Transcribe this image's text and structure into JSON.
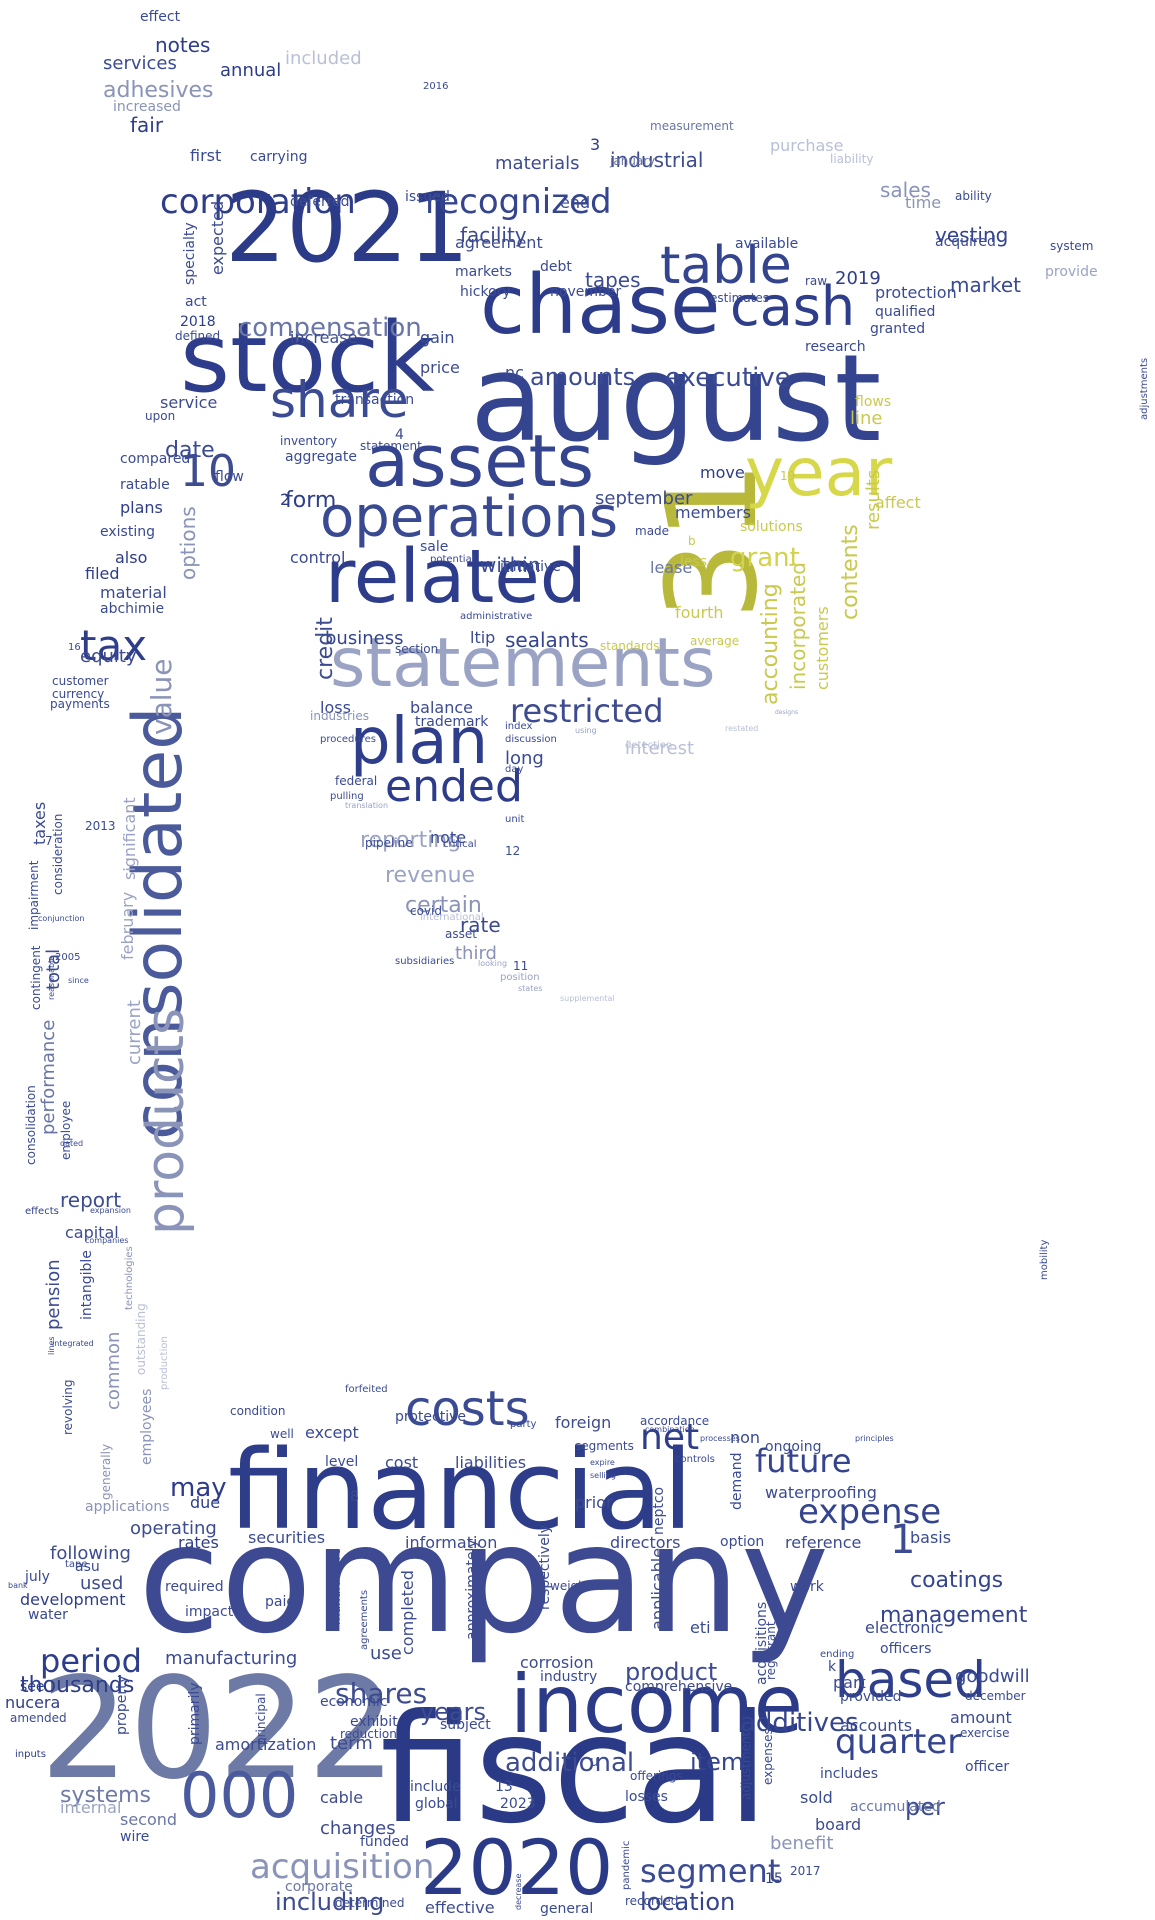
{
  "words": [
    {
      "t": "company",
      "c": "#3d4a92"
    },
    {
      "t": "fiscal",
      "c": "#2a3a86"
    },
    {
      "t": "financial",
      "c": "#2d3d8a"
    },
    {
      "t": "2022",
      "c": "#6e7aa6"
    },
    {
      "t": "august",
      "c": "#34448e"
    },
    {
      "t": "31",
      "c": "#b8b83a"
    },
    {
      "t": "statements",
      "c": "#9aa3c4"
    },
    {
      "t": "2021",
      "c": "#2b3b88"
    },
    {
      "t": "stock",
      "c": "#2e3d8b"
    },
    {
      "t": "chase",
      "c": "#2d3c8a"
    },
    {
      "t": "assets",
      "c": "#34448e"
    },
    {
      "t": "related",
      "c": "#2d3d8b"
    },
    {
      "t": "operations",
      "c": "#3a4a92"
    },
    {
      "t": "plan",
      "c": "#2e3e8b"
    },
    {
      "t": "year",
      "c": "#d7d74a"
    },
    {
      "t": "income",
      "c": "#2c3b88"
    },
    {
      "t": "2020",
      "c": "#2b3a86"
    },
    {
      "t": "000",
      "c": "#4a5a9c"
    },
    {
      "t": "consolidated",
      "c": "#4b5a9a"
    },
    {
      "t": "products",
      "c": "#8a93b8"
    },
    {
      "t": "cash",
      "c": "#2e3e8b"
    },
    {
      "t": "table",
      "c": "#34448e"
    },
    {
      "t": "share",
      "c": "#3a4a93"
    },
    {
      "t": "costs",
      "c": "#3a4a93"
    },
    {
      "t": "based",
      "c": "#2e3e8b"
    },
    {
      "t": "ended",
      "c": "#2d3c8a"
    },
    {
      "t": "tax",
      "c": "#2e3e8b"
    },
    {
      "t": "restricted",
      "c": "#3d4b90"
    },
    {
      "t": "corporation",
      "c": "#2e3d8a"
    },
    {
      "t": "recognized",
      "c": "#34448e"
    },
    {
      "t": "quarter",
      "c": "#34448e"
    },
    {
      "t": "expense",
      "c": "#34448e"
    },
    {
      "t": "net",
      "c": "#2e3d8a"
    },
    {
      "t": "acquisition",
      "c": "#8a93b8"
    },
    {
      "t": "segment",
      "c": "#3a4a93"
    },
    {
      "t": "value",
      "c": "#8a93b8"
    },
    {
      "t": "period",
      "c": "#2e3d8a"
    },
    {
      "t": "future",
      "c": "#34448e"
    },
    {
      "t": "1",
      "c": "#3d4b90"
    },
    {
      "t": "10",
      "c": "#3d4b90"
    },
    {
      "t": "contents",
      "c": "#c9c94e"
    },
    {
      "t": "accounting",
      "c": "#c9c94e"
    },
    {
      "t": "incorporated",
      "c": "#c9c94e"
    },
    {
      "t": "grant",
      "c": "#d2d24c"
    },
    {
      "t": "executive",
      "c": "#3a4a93"
    },
    {
      "t": "amounts",
      "c": "#3a4a93"
    },
    {
      "t": "compensation",
      "c": "#6a76a6"
    },
    {
      "t": "form",
      "c": "#2e3d8a"
    },
    {
      "t": "date",
      "c": "#3a4a93"
    },
    {
      "t": "options",
      "c": "#8a93b8"
    },
    {
      "t": "may",
      "c": "#2e3d8a"
    },
    {
      "t": "shares",
      "c": "#3d4b90"
    },
    {
      "t": "additives",
      "c": "#34448e"
    },
    {
      "t": "additional",
      "c": "#3d4b90"
    },
    {
      "t": "management",
      "c": "#34448e"
    },
    {
      "t": "coatings",
      "c": "#34448e"
    },
    {
      "t": "years",
      "c": "#3d4b90"
    },
    {
      "t": "product",
      "c": "#3d4b90"
    },
    {
      "t": "item",
      "c": "#34448e"
    },
    {
      "t": "per",
      "c": "#3a4a93"
    },
    {
      "t": "location",
      "c": "#34448e"
    },
    {
      "t": "thousands",
      "c": "#2e3d8a"
    },
    {
      "t": "systems",
      "c": "#6e7aa6"
    },
    {
      "t": "including",
      "c": "#3d4b90"
    },
    {
      "t": "revenue",
      "c": "#9aa3c4"
    },
    {
      "t": "certain",
      "c": "#8a93b8"
    },
    {
      "t": "reporting",
      "c": "#9aa3c4"
    },
    {
      "t": "rate",
      "c": "#3a4a93"
    },
    {
      "t": "facility",
      "c": "#3a4a93"
    },
    {
      "t": "tapes",
      "c": "#3d4b90"
    },
    {
      "t": "market",
      "c": "#3a4a93"
    },
    {
      "t": "sales",
      "c": "#8a93b8"
    },
    {
      "t": "vesting",
      "c": "#34448e"
    },
    {
      "t": "industrial",
      "c": "#3d4b90"
    },
    {
      "t": "materials",
      "c": "#3d4b90"
    },
    {
      "t": "2019",
      "c": "#2e3d8a"
    },
    {
      "t": "sealants",
      "c": "#34448e"
    },
    {
      "t": "business",
      "c": "#34448e"
    },
    {
      "t": "within",
      "c": "#3a4a93"
    },
    {
      "t": "september",
      "c": "#3d4b90"
    },
    {
      "t": "members",
      "c": "#3a4a93"
    },
    {
      "t": "move",
      "c": "#2e3d8a"
    },
    {
      "t": "lease",
      "c": "#6a76a6"
    },
    {
      "t": "fourth",
      "c": "#c9c94e"
    },
    {
      "t": "long",
      "c": "#3a4a93"
    },
    {
      "t": "interest",
      "c": "#b9bfd6"
    },
    {
      "t": "price",
      "c": "#3d4b90"
    },
    {
      "t": "nc",
      "c": "#3a4a93"
    },
    {
      "t": "gain",
      "c": "#3a4a93"
    },
    {
      "t": "increase",
      "c": "#3d4b90"
    },
    {
      "t": "deferred",
      "c": "#3d4b90"
    },
    {
      "t": "expected",
      "c": "#3a4a93"
    },
    {
      "t": "specialty",
      "c": "#3a4a93"
    },
    {
      "t": "notes",
      "c": "#2e3d8a"
    },
    {
      "t": "services",
      "c": "#3a4a93"
    },
    {
      "t": "adhesives",
      "c": "#8a93b8"
    },
    {
      "t": "annual",
      "c": "#2e3d8a"
    },
    {
      "t": "included",
      "c": "#b9bfd6"
    },
    {
      "t": "fair",
      "c": "#2e3d8a"
    },
    {
      "t": "increased",
      "c": "#8a93b8"
    },
    {
      "t": "first",
      "c": "#3a4a93"
    },
    {
      "t": "carrying",
      "c": "#3a4a93"
    },
    {
      "t": "effect",
      "c": "#3a4a93"
    },
    {
      "t": "issued",
      "c": "#3a4a93"
    },
    {
      "t": "end",
      "c": "#3a4a93"
    },
    {
      "t": "agreement",
      "c": "#3d4b90"
    },
    {
      "t": "markets",
      "c": "#3a4a93"
    },
    {
      "t": "debt",
      "c": "#3a4a93"
    },
    {
      "t": "hickory",
      "c": "#3a4a93"
    },
    {
      "t": "november",
      "c": "#3a4a93"
    },
    {
      "t": "protection",
      "c": "#3a4a93"
    },
    {
      "t": "qualified",
      "c": "#3a4a93"
    },
    {
      "t": "granted",
      "c": "#3a4a93"
    },
    {
      "t": "research",
      "c": "#3a4a93"
    },
    {
      "t": "acquired",
      "c": "#3a4a93"
    },
    {
      "t": "system",
      "c": "#3a4a93"
    },
    {
      "t": "provide",
      "c": "#9aa3c4"
    },
    {
      "t": "time",
      "c": "#8a93b8"
    },
    {
      "t": "ability",
      "c": "#3a4a93"
    },
    {
      "t": "purchase",
      "c": "#b9bfd6"
    },
    {
      "t": "liability",
      "c": "#b9bfd6"
    },
    {
      "t": "measurement",
      "c": "#6a76a6"
    },
    {
      "t": "january",
      "c": "#6a76a6"
    },
    {
      "t": "available",
      "c": "#3a4a93"
    },
    {
      "t": "estimates",
      "c": "#3a4a93"
    },
    {
      "t": "raw",
      "c": "#3a4a93"
    },
    {
      "t": "act",
      "c": "#3a4a93"
    },
    {
      "t": "2018",
      "c": "#2e3d8a"
    },
    {
      "t": "defined",
      "c": "#3a4a93"
    },
    {
      "t": "service",
      "c": "#3d4b90"
    },
    {
      "t": "compared",
      "c": "#3a4a93"
    },
    {
      "t": "plans",
      "c": "#2e3d8a"
    },
    {
      "t": "existing",
      "c": "#3a4a93"
    },
    {
      "t": "also",
      "c": "#2e3d8a"
    },
    {
      "t": "filed",
      "c": "#2e3d8a"
    },
    {
      "t": "material",
      "c": "#3a4a93"
    },
    {
      "t": "abchimie",
      "c": "#3a4a93"
    },
    {
      "t": "equity",
      "c": "#3d4b90"
    },
    {
      "t": "customer",
      "c": "#3a4a93"
    },
    {
      "t": "currency",
      "c": "#3a4a93"
    },
    {
      "t": "payments",
      "c": "#3a4a93"
    },
    {
      "t": "taxes",
      "c": "#3a4a93"
    },
    {
      "t": "total",
      "c": "#3d4b90"
    },
    {
      "t": "current",
      "c": "#9aa3c4"
    },
    {
      "t": "february",
      "c": "#9aa3c4"
    },
    {
      "t": "significant",
      "c": "#9aa3c4"
    },
    {
      "t": "performance",
      "c": "#6a76a6"
    },
    {
      "t": "impairment",
      "c": "#3a4a93"
    },
    {
      "t": "consideration",
      "c": "#3a4a93"
    },
    {
      "t": "report",
      "c": "#3d4b90"
    },
    {
      "t": "capital",
      "c": "#3d4b90"
    },
    {
      "t": "pension",
      "c": "#3d4b90"
    },
    {
      "t": "intangible",
      "c": "#3a4a93"
    },
    {
      "t": "common",
      "c": "#8a93b8"
    },
    {
      "t": "employees",
      "c": "#8a93b8"
    },
    {
      "t": "outstanding",
      "c": "#b9bfd6"
    },
    {
      "t": "revolving",
      "c": "#3a4a93"
    },
    {
      "t": "operating",
      "c": "#3d4b90"
    },
    {
      "t": "applications",
      "c": "#8a93b8"
    },
    {
      "t": "due",
      "c": "#2e3d8a"
    },
    {
      "t": "rates",
      "c": "#2e3d8a"
    },
    {
      "t": "following",
      "c": "#3d4b90"
    },
    {
      "t": "used",
      "c": "#3d4b90"
    },
    {
      "t": "development",
      "c": "#2e3d8a"
    },
    {
      "t": "water",
      "c": "#3a4a93"
    },
    {
      "t": "see",
      "c": "#2e3d8a"
    },
    {
      "t": "nucera",
      "c": "#2e3d8a"
    },
    {
      "t": "amended",
      "c": "#3a4a93"
    },
    {
      "t": "internal",
      "c": "#9aa3c4"
    },
    {
      "t": "second",
      "c": "#6a76a6"
    },
    {
      "t": "wire",
      "c": "#3a4a93"
    },
    {
      "t": "manufacturing",
      "c": "#3d4b90"
    },
    {
      "t": "required",
      "c": "#3d4b90"
    },
    {
      "t": "impact",
      "c": "#3d4b90"
    },
    {
      "t": "amortization",
      "c": "#3d4b90"
    },
    {
      "t": "securities",
      "c": "#3d4b90"
    },
    {
      "t": "cost",
      "c": "#3a4a93"
    },
    {
      "t": "except",
      "c": "#3a4a93"
    },
    {
      "t": "level",
      "c": "#3a4a93"
    },
    {
      "t": "liabilities",
      "c": "#3d4b90"
    },
    {
      "t": "information",
      "c": "#3d4b90"
    },
    {
      "t": "directors",
      "c": "#3d4b90"
    },
    {
      "t": "foreign",
      "c": "#3d4b90"
    },
    {
      "t": "segments",
      "c": "#3a4a93"
    },
    {
      "t": "prior",
      "c": "#3d4b90"
    },
    {
      "t": "non",
      "c": "#3a4a93"
    },
    {
      "t": "waterproofing",
      "c": "#3a4a93"
    },
    {
      "t": "reference",
      "c": "#3d4b90"
    },
    {
      "t": "basis",
      "c": "#3a4a93"
    },
    {
      "t": "electronic",
      "c": "#3a4a93"
    },
    {
      "t": "goodwill",
      "c": "#3a4a93"
    },
    {
      "t": "amount",
      "c": "#3a4a93"
    },
    {
      "t": "december",
      "c": "#3a4a93"
    },
    {
      "t": "exercise",
      "c": "#3a4a93"
    },
    {
      "t": "officer",
      "c": "#3a4a93"
    },
    {
      "t": "includes",
      "c": "#3a4a93"
    },
    {
      "t": "accumulated",
      "c": "#6a76a6"
    },
    {
      "t": "board",
      "c": "#3d4b90"
    },
    {
      "t": "benefit",
      "c": "#8a93b8"
    },
    {
      "t": "accounts",
      "c": "#3d4b90"
    },
    {
      "t": "provided",
      "c": "#3a4a93"
    },
    {
      "t": "sold",
      "c": "#3a4a93"
    },
    {
      "t": "part",
      "c": "#3a4a93"
    },
    {
      "t": "officers",
      "c": "#3a4a93"
    },
    {
      "t": "eti",
      "c": "#3a4a93"
    },
    {
      "t": "corrosion",
      "c": "#3d4b90"
    },
    {
      "t": "industry",
      "c": "#3a4a93"
    },
    {
      "t": "comprehensive",
      "c": "#3d4b90"
    },
    {
      "t": "term",
      "c": "#3d4b90"
    },
    {
      "t": "economic",
      "c": "#3a4a93"
    },
    {
      "t": "exhibit",
      "c": "#3a4a93"
    },
    {
      "t": "reduction",
      "c": "#3a4a93"
    },
    {
      "t": "subject",
      "c": "#3a4a93"
    },
    {
      "t": "changes",
      "c": "#3d4b90"
    },
    {
      "t": "cable",
      "c": "#3d4b90"
    },
    {
      "t": "funded",
      "c": "#3a4a93"
    },
    {
      "t": "include",
      "c": "#3a4a93"
    },
    {
      "t": "global",
      "c": "#3a4a93"
    },
    {
      "t": "2023",
      "c": "#3a4a93"
    },
    {
      "t": "13",
      "c": "#3a4a93"
    },
    {
      "t": "losses",
      "c": "#3a4a93"
    },
    {
      "t": "offerings",
      "c": "#3a4a93"
    },
    {
      "t": "corporate",
      "c": "#6a76a6"
    },
    {
      "t": "determined",
      "c": "#3a4a93"
    },
    {
      "t": "effective",
      "c": "#3d4b90"
    },
    {
      "t": "general",
      "c": "#3a4a93"
    },
    {
      "t": "recorded",
      "c": "#3a4a93"
    },
    {
      "t": "15",
      "c": "#2e3d8a"
    },
    {
      "t": "2017",
      "c": "#3a4a93"
    },
    {
      "t": "use",
      "c": "#3d4b90"
    },
    {
      "t": "paid",
      "c": "#3a4a93"
    },
    {
      "t": "protective",
      "c": "#3a4a93"
    },
    {
      "t": "well",
      "c": "#3a4a93"
    },
    {
      "t": "weighted",
      "c": "#3a4a93"
    },
    {
      "t": "credit",
      "c": "#3d4b90"
    },
    {
      "t": "control",
      "c": "#3a4a93"
    },
    {
      "t": "loss",
      "c": "#3a4a93"
    },
    {
      "t": "balance",
      "c": "#3a4a93"
    },
    {
      "t": "trademark",
      "c": "#3a4a93"
    },
    {
      "t": "ltip",
      "c": "#3a4a93"
    },
    {
      "t": "section",
      "c": "#3a4a93"
    },
    {
      "t": "sale",
      "c": "#3a4a93"
    },
    {
      "t": "note",
      "c": "#3a4a93"
    },
    {
      "t": "third",
      "c": "#8a93b8"
    },
    {
      "t": "asset",
      "c": "#3a4a93"
    },
    {
      "t": "covid",
      "c": "#3a4a93"
    },
    {
      "t": "aggregate",
      "c": "#3a4a93"
    },
    {
      "t": "transaction",
      "c": "#3a4a93"
    },
    {
      "t": "statement",
      "c": "#3a4a93"
    },
    {
      "t": "line",
      "c": "#c9c94e"
    },
    {
      "t": "flows",
      "c": "#c9c94e"
    },
    {
      "t": "results",
      "c": "#c9c94e"
    },
    {
      "t": "customers",
      "c": "#c9c94e"
    },
    {
      "t": "solutions",
      "c": "#c9c94e"
    },
    {
      "t": "affect",
      "c": "#c9c94e"
    },
    {
      "t": "less",
      "c": "#c9c94e"
    },
    {
      "t": "average",
      "c": "#c9c94e"
    },
    {
      "t": "standards",
      "c": "#c9c94e"
    },
    {
      "t": "made",
      "c": "#3a4a93"
    },
    {
      "t": "initiative",
      "c": "#3a4a93"
    },
    {
      "t": "pipeline",
      "c": "#3a4a93"
    },
    {
      "t": "flow",
      "c": "#3a4a93"
    },
    {
      "t": "inventory",
      "c": "#3a4a93"
    },
    {
      "t": "upon",
      "c": "#3a4a93"
    },
    {
      "t": "ratable",
      "c": "#3a4a93"
    },
    {
      "t": "2",
      "c": "#2e3d8a"
    },
    {
      "t": "3",
      "c": "#2e3d8a"
    },
    {
      "t": "4",
      "c": "#3a4a93"
    },
    {
      "t": "8",
      "c": "#3a4a93"
    },
    {
      "t": "11",
      "c": "#3a4a93"
    },
    {
      "t": "12",
      "c": "#3a4a93"
    },
    {
      "t": "16",
      "c": "#3a4a93"
    },
    {
      "t": "19",
      "c": "#c9c94e"
    },
    {
      "t": "2013",
      "c": "#3a4a93"
    },
    {
      "t": "2016",
      "c": "#3a4a93"
    },
    {
      "t": "2005",
      "c": "#3a4a93"
    },
    {
      "t": "7",
      "c": "#3a4a93"
    },
    {
      "t": "k",
      "c": "#3a4a93"
    },
    {
      "t": "u",
      "c": "#3a4a93"
    },
    {
      "t": "b",
      "c": "#c9c94e"
    },
    {
      "t": "mobility",
      "c": "#3a4a93"
    },
    {
      "t": "adjustments",
      "c": "#3a4a93"
    },
    {
      "t": "federal",
      "c": "#3a4a93"
    },
    {
      "t": "pulling",
      "c": "#3a4a93"
    },
    {
      "t": "subsidiaries",
      "c": "#3a4a93"
    },
    {
      "t": "potential",
      "c": "#3a4a93"
    },
    {
      "t": "administrative",
      "c": "#3a4a93"
    },
    {
      "t": "industries",
      "c": "#8a93b8"
    },
    {
      "t": "procedures",
      "c": "#3a4a93"
    },
    {
      "t": "index",
      "c": "#3a4a93"
    },
    {
      "t": "discussion",
      "c": "#3a4a93"
    },
    {
      "t": "day",
      "c": "#3a4a93"
    },
    {
      "t": "unit",
      "c": "#3a4a93"
    },
    {
      "t": "critical",
      "c": "#3a4a93"
    },
    {
      "t": "international",
      "c": "#b9bfd6"
    },
    {
      "t": "looking",
      "c": "#9aa3c4"
    },
    {
      "t": "position",
      "c": "#9aa3c4"
    },
    {
      "t": "states",
      "c": "#9aa3c4"
    },
    {
      "t": "supplemental",
      "c": "#b9bfd6"
    },
    {
      "t": "translation",
      "c": "#9aa3c4"
    },
    {
      "t": "using",
      "c": "#9aa3c4"
    },
    {
      "t": "detection",
      "c": "#b9bfd6"
    },
    {
      "t": "restated",
      "c": "#b9bfd6"
    },
    {
      "t": "designs",
      "c": "#9aa3c4"
    },
    {
      "t": "contingent",
      "c": "#3a4a93"
    },
    {
      "t": "conjunction",
      "c": "#3a4a93"
    },
    {
      "t": "since",
      "c": "#3a4a93"
    },
    {
      "t": "reasonable",
      "c": "#3a4a93"
    },
    {
      "t": "consolidation",
      "c": "#3a4a93"
    },
    {
      "t": "employee",
      "c": "#3a4a93"
    },
    {
      "t": "dated",
      "c": "#3a4a93"
    },
    {
      "t": "effects",
      "c": "#2e3d8a"
    },
    {
      "t": "expansion",
      "c": "#3a4a93"
    },
    {
      "t": "companies",
      "c": "#3a4a93"
    },
    {
      "t": "technologies",
      "c": "#8a93b8"
    },
    {
      "t": "production",
      "c": "#b9bfd6"
    },
    {
      "t": "generally",
      "c": "#8a93b8"
    },
    {
      "t": "integrated",
      "c": "#3a4a93"
    },
    {
      "t": "lines",
      "c": "#3a4a93"
    },
    {
      "t": "condition",
      "c": "#3a4a93"
    },
    {
      "t": "forfeited",
      "c": "#3a4a93"
    },
    {
      "t": "party",
      "c": "#3a4a93"
    },
    {
      "t": "accordance",
      "c": "#3a4a93"
    },
    {
      "t": "combination",
      "c": "#3a4a93"
    },
    {
      "t": "ongoing",
      "c": "#3a4a93"
    },
    {
      "t": "processes",
      "c": "#3a4a93"
    },
    {
      "t": "principles",
      "c": "#3a4a93"
    },
    {
      "t": "controls",
      "c": "#3a4a93"
    },
    {
      "t": "expire",
      "c": "#3a4a93"
    },
    {
      "t": "selling",
      "c": "#3a4a93"
    },
    {
      "t": "demand",
      "c": "#3a4a93"
    },
    {
      "t": "neptco",
      "c": "#3a4a93"
    },
    {
      "t": "applicable",
      "c": "#3d4b90"
    },
    {
      "t": "respectively",
      "c": "#3d4b90"
    },
    {
      "t": "approximately",
      "c": "#3d4b90"
    },
    {
      "t": "completed",
      "c": "#3d4b90"
    },
    {
      "t": "agreements",
      "c": "#3a4a93"
    },
    {
      "t": "manufacture",
      "c": "#3a4a93"
    },
    {
      "t": "principal",
      "c": "#3a4a93"
    },
    {
      "t": "primarily",
      "c": "#3a4a93"
    },
    {
      "t": "property",
      "c": "#3a4a93"
    },
    {
      "t": "acquisitions",
      "c": "#3a4a93"
    },
    {
      "t": "adjustment",
      "c": "#3a4a93"
    },
    {
      "t": "expenses",
      "c": "#3a4a93"
    },
    {
      "t": "registrant",
      "c": "#3a4a93"
    },
    {
      "t": "work",
      "c": "#3a4a93"
    },
    {
      "t": "option",
      "c": "#3a4a93"
    },
    {
      "t": "ending",
      "c": "#3a4a93"
    },
    {
      "t": "pandemic",
      "c": "#3a4a93"
    },
    {
      "t": "decrease",
      "c": "#3a4a93"
    },
    {
      "t": "inputs",
      "c": "#2e3d8a"
    },
    {
      "t": "tape",
      "c": "#3a4a93"
    },
    {
      "t": "july",
      "c": "#3a4a93"
    },
    {
      "t": "asu",
      "c": "#3a4a93"
    },
    {
      "t": "bank",
      "c": "#3a4a93"
    },
    {
      "t": "adjustments_small",
      "c": "#3a4a93"
    }
  ]
}
